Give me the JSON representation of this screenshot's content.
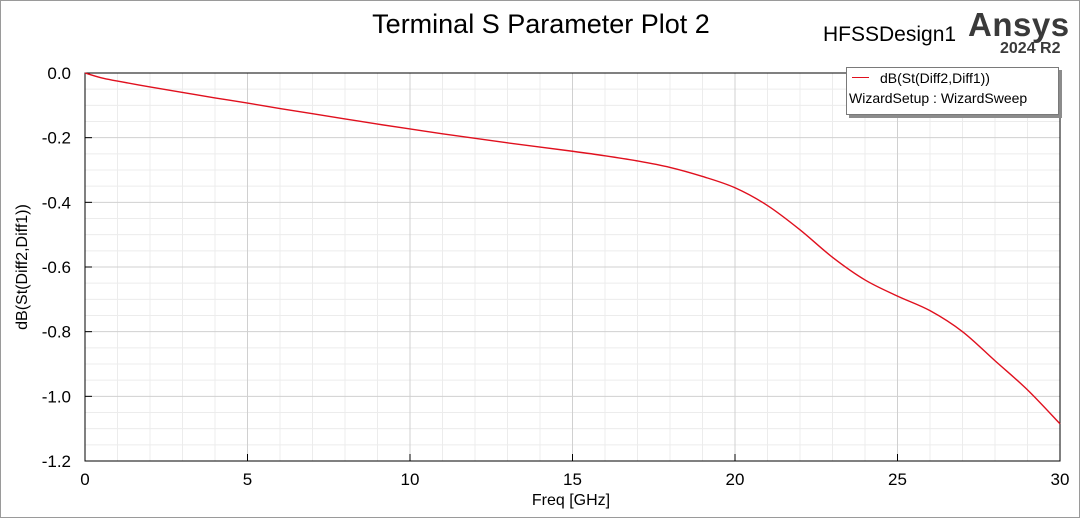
{
  "header": {
    "title": "Terminal S Parameter Plot 2",
    "design_name": "HFSSDesign1",
    "brand": "Ansys",
    "version": "2024 R2"
  },
  "legend": {
    "series_label": "dB(St(Diff2,Diff1))",
    "setup_label": "WizardSetup : WizardSweep"
  },
  "chart_data": {
    "type": "line",
    "title": "Terminal S Parameter Plot 2",
    "xlabel": "Freq [GHz]",
    "ylabel": "dB(St(Diff2,Diff1))",
    "xlim": [
      0,
      30
    ],
    "ylim": [
      -1.2,
      0.0
    ],
    "x_ticks": [
      0,
      5,
      10,
      15,
      20,
      25,
      30
    ],
    "x_tick_labels": [
      "0",
      "5",
      "10",
      "15",
      "20",
      "25",
      "30"
    ],
    "y_ticks": [
      0.0,
      -0.2,
      -0.4,
      -0.6,
      -0.8,
      -1.0,
      -1.2
    ],
    "y_tick_labels": [
      "0.0",
      "-0.2",
      "-0.4",
      "-0.6",
      "-0.8",
      "-1.0",
      "-1.2"
    ],
    "grid": true,
    "legend_position": "top-right",
    "series": [
      {
        "name": "dB(St(Diff2,Diff1))",
        "color": "#e0101e",
        "x": [
          0,
          0.5,
          1,
          2,
          3,
          4,
          5,
          6,
          7,
          8,
          9,
          10,
          11,
          12,
          13,
          14,
          15,
          16,
          17,
          18,
          19,
          20,
          21,
          22,
          23,
          24,
          25,
          26,
          27,
          28,
          29,
          30
        ],
        "y": [
          0.0,
          -0.015,
          -0.025,
          -0.043,
          -0.06,
          -0.077,
          -0.093,
          -0.11,
          -0.126,
          -0.142,
          -0.158,
          -0.173,
          -0.188,
          -0.202,
          -0.216,
          -0.229,
          -0.242,
          -0.256,
          -0.272,
          -0.292,
          -0.32,
          -0.355,
          -0.41,
          -0.485,
          -0.57,
          -0.64,
          -0.69,
          -0.735,
          -0.8,
          -0.89,
          -0.98,
          -1.085
        ]
      }
    ]
  }
}
